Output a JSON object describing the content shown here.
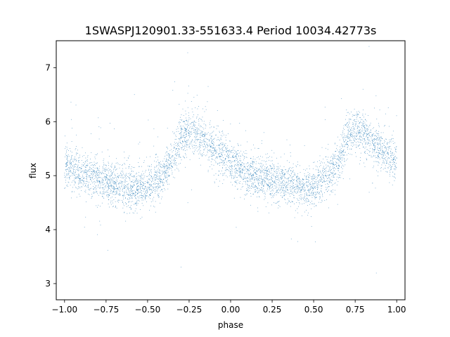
{
  "chart_data": {
    "type": "scatter",
    "title": "1SWASPJ120901.33-551633.4 Period 10034.42773s",
    "xlabel": "phase",
    "ylabel": "flux",
    "xlim": [
      -1.05,
      1.05
    ],
    "ylim": [
      2.7,
      7.5
    ],
    "xticks": [
      -1.0,
      -0.75,
      -0.5,
      -0.25,
      0.0,
      0.25,
      0.5,
      0.75,
      1.0
    ],
    "xtick_labels": [
      "−1.00",
      "−0.75",
      "−0.50",
      "−0.25",
      "0.00",
      "0.25",
      "0.50",
      "0.75",
      "1.00"
    ],
    "yticks": [
      3,
      4,
      5,
      6,
      7
    ],
    "ytick_labels": [
      "3",
      "4",
      "5",
      "6",
      "7"
    ],
    "grid": false,
    "point_color": "#1f77b4",
    "phase_range": [
      -1.0,
      1.0
    ],
    "trend": {
      "phase": [
        -1.0,
        -0.9,
        -0.8,
        -0.7,
        -0.6,
        -0.55,
        -0.5,
        -0.45,
        -0.4,
        -0.35,
        -0.3,
        -0.25,
        -0.2,
        -0.15,
        -0.1,
        -0.05,
        0.0,
        0.1,
        0.2,
        0.3,
        0.4,
        0.45,
        0.5,
        0.55,
        0.6,
        0.65,
        0.7,
        0.75,
        0.8,
        0.85,
        0.9,
        0.95,
        1.0
      ],
      "flux": [
        5.2,
        5.05,
        4.95,
        4.85,
        4.78,
        4.75,
        4.8,
        4.9,
        5.05,
        5.3,
        5.7,
        5.85,
        5.75,
        5.65,
        5.5,
        5.4,
        5.25,
        5.05,
        4.95,
        4.85,
        4.78,
        4.75,
        4.8,
        4.9,
        5.05,
        5.3,
        5.7,
        5.85,
        5.75,
        5.65,
        5.5,
        5.4,
        5.25
      ]
    },
    "scatter_sigma": 0.2
  }
}
